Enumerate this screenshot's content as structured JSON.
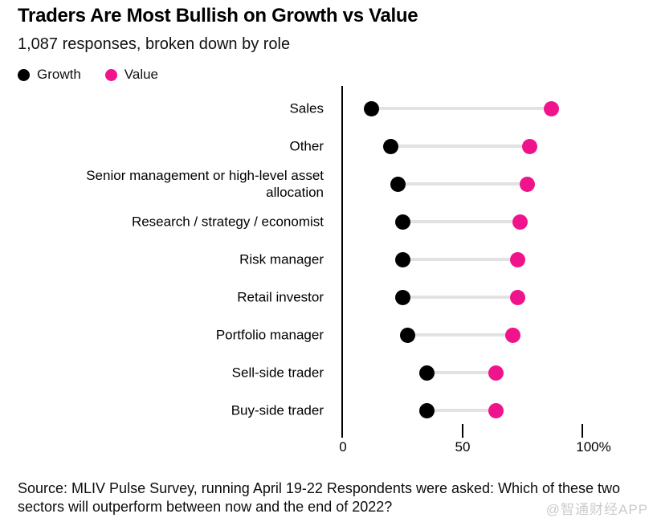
{
  "header": {
    "title": "Traders Are Most Bullish on Growth vs Value",
    "subtitle": "1,087 responses, broken down by role"
  },
  "legend": [
    {
      "label": "Growth",
      "color": "#000000"
    },
    {
      "label": "Value",
      "color": "#F0148C"
    }
  ],
  "chart_data": {
    "type": "dumbbell",
    "orientation": "horizontal",
    "title": "Traders Are Most Bullish on Growth vs Value",
    "subtitle": "1,087 responses, broken down by role",
    "categories": [
      "Sales",
      "Other",
      "Senior management or high-level asset allocation",
      "Research / strategy / economist",
      "Risk manager",
      "Retail investor",
      "Portfolio manager",
      "Sell-side trader",
      "Buy-side trader"
    ],
    "series": [
      {
        "name": "Growth",
        "color": "#000000",
        "values": [
          12,
          20,
          23,
          25,
          25,
          25,
          27,
          35,
          35
        ]
      },
      {
        "name": "Value",
        "color": "#F0148C",
        "values": [
          87,
          78,
          77,
          74,
          73,
          73,
          71,
          64,
          64
        ]
      }
    ],
    "unit": "%",
    "xlim": [
      0,
      100
    ],
    "axis": {
      "ticks": [
        {
          "label": "0",
          "value": 0
        },
        {
          "label": "50",
          "value": 50
        },
        {
          "label": "100%",
          "value": 100
        }
      ]
    },
    "grid": false,
    "legend_position": "top-left",
    "connector_color": "#E2E2E2"
  },
  "footer": {
    "source": "Source: MLIV Pulse Survey, running April 19-22 Respondents were asked: Which of these two sectors will outperform between now and the end of 2022?",
    "watermark": "@智通财经APP"
  }
}
